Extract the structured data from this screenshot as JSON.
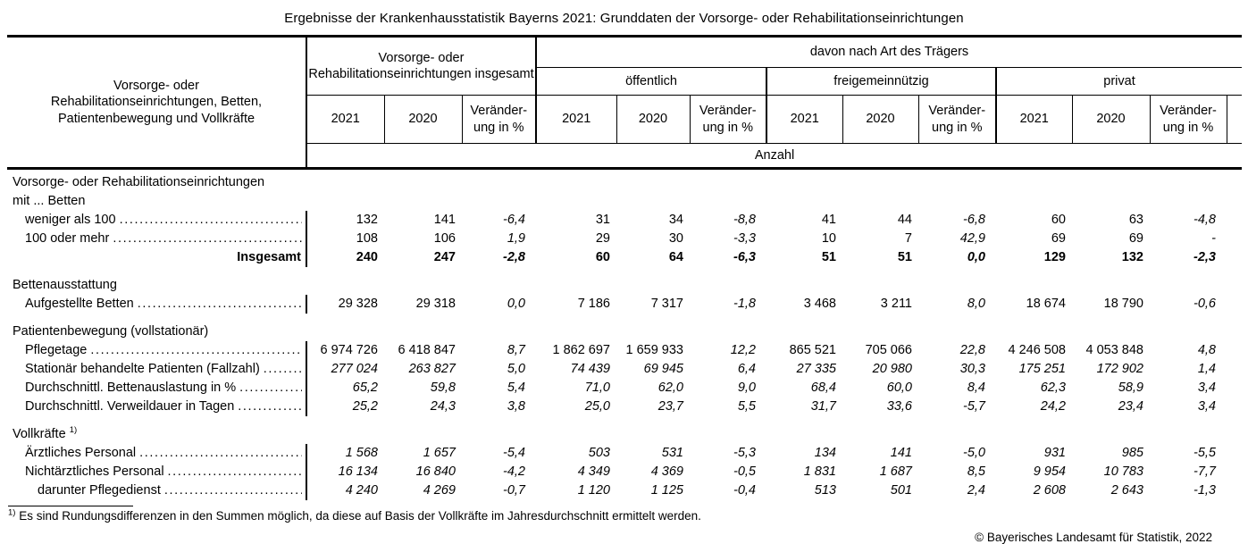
{
  "title": "Ergebnisse der Krankenhausstatistik Bayerns 2021: Grunddaten der Vorsorge- oder Rehabilitationseinrichtungen",
  "header": {
    "stub_label": "Vorsorge- oder Rehabilitationseinrichtungen, Betten, Patientenbewegung und Vollkräfte",
    "group_total": "Vorsorge- oder Rehabilitationseinrichtungen insgesamt",
    "group_by_provider": "davon nach Art des Trägers",
    "providers": [
      "öffentlich",
      "freigemeinnützig",
      "privat"
    ],
    "year_cols": [
      "2021",
      "2020",
      "Veränder-\nung in %"
    ],
    "unit_label": "Anzahl"
  },
  "rows": [
    {
      "type": "gap"
    },
    {
      "type": "section",
      "label": "Vorsorge- oder Rehabilitationseinrichtungen"
    },
    {
      "type": "section",
      "label": "mit ... Betten"
    },
    {
      "type": "data",
      "label": "weniger als 100",
      "values": [
        "132",
        "141",
        "-6,4",
        "31",
        "34",
        "-8,8",
        "41",
        "44",
        "-6,8",
        "60",
        "63",
        "-4,8"
      ]
    },
    {
      "type": "data",
      "label": "100 oder mehr",
      "values": [
        "108",
        "106",
        "1,9",
        "29",
        "30",
        "-3,3",
        "10",
        "7",
        "42,9",
        "69",
        "69",
        "-"
      ]
    },
    {
      "type": "total",
      "label": "Insgesamt",
      "values": [
        "240",
        "247",
        "-2,8",
        "60",
        "64",
        "-6,3",
        "51",
        "51",
        "0,0",
        "129",
        "132",
        "-2,3"
      ]
    },
    {
      "type": "gap"
    },
    {
      "type": "section",
      "label": "Bettenausstattung"
    },
    {
      "type": "data",
      "label": "Aufgestellte Betten",
      "values": [
        "29 328",
        "29 318",
        "0,0",
        "7 186",
        "7 317",
        "-1,8",
        "3 468",
        "3 211",
        "8,0",
        "18 674",
        "18 790",
        "-0,6"
      ]
    },
    {
      "type": "gap"
    },
    {
      "type": "section",
      "label": "Patientenbewegung (vollstationär)"
    },
    {
      "type": "data",
      "label": "Pflegetage",
      "values": [
        "6 974 726",
        "6 418 847",
        "8,7",
        "1 862 697",
        "1 659 933",
        "12,2",
        "865 521",
        "705 066",
        "22,8",
        "4 246 508",
        "4 053 848",
        "4,8"
      ]
    },
    {
      "type": "data",
      "italic": true,
      "label": "Stationär behandelte Patienten (Fallzahl)",
      "values": [
        "277 024",
        "263 827",
        "5,0",
        "74 439",
        "69 945",
        "6,4",
        "27 335",
        "20 980",
        "30,3",
        "175 251",
        "172 902",
        "1,4"
      ]
    },
    {
      "type": "data",
      "italic": true,
      "label": "Durchschnittl. Bettenauslastung in %",
      "values": [
        "65,2",
        "59,8",
        "5,4",
        "71,0",
        "62,0",
        "9,0",
        "68,4",
        "60,0",
        "8,4",
        "62,3",
        "58,9",
        "3,4"
      ]
    },
    {
      "type": "data",
      "italic": true,
      "label": "Durchschnittl. Verweildauer in Tagen",
      "values": [
        "25,2",
        "24,3",
        "3,8",
        "25,0",
        "23,7",
        "5,5",
        "31,7",
        "33,6",
        "-5,7",
        "24,2",
        "23,4",
        "3,4"
      ]
    },
    {
      "type": "gap"
    },
    {
      "type": "section",
      "label": "Vollkräfte",
      "sup": "1)"
    },
    {
      "type": "data",
      "italic": true,
      "label": "Ärztliches Personal",
      "values": [
        "1 568",
        "1 657",
        "-5,4",
        "503",
        "531",
        "-5,3",
        "134",
        "141",
        "-5,0",
        "931",
        "985",
        "-5,5"
      ]
    },
    {
      "type": "data",
      "italic": true,
      "label": "Nichtärztliches Personal",
      "values": [
        "16 134",
        "16 840",
        "-4,2",
        "4 349",
        "4 369",
        "-0,5",
        "1 831",
        "1 687",
        "8,5",
        "9 954",
        "10 783",
        "-7,7"
      ]
    },
    {
      "type": "data",
      "italic": true,
      "indent": 2,
      "label": "darunter Pflegedienst",
      "values": [
        "4 240",
        "4 269",
        "-0,7",
        "1 120",
        "1 125",
        "-0,4",
        "513",
        "501",
        "2,4",
        "2 608",
        "2 643",
        "-1,3"
      ]
    }
  ],
  "footnote": {
    "marker": "1)",
    "text": "Es sind Rundungsdifferenzen in den Summen möglich, da diese auf Basis der Vollkräfte im Jahresdurchschnitt ermittelt werden."
  },
  "copyright": "© Bayerisches Landesamt für Statistik, 2022"
}
